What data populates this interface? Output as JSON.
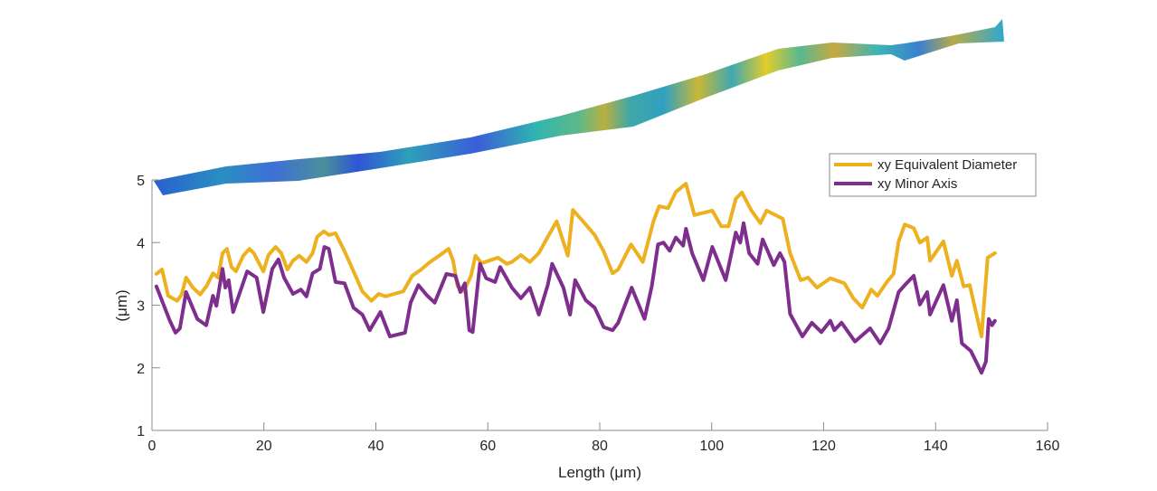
{
  "chart_data": {
    "type": "line",
    "title": "",
    "xlabel": "Length (μm)",
    "ylabel": "(μm)",
    "xlim": [
      0,
      160
    ],
    "ylim": [
      1,
      5
    ],
    "xticks": [
      0,
      20,
      40,
      60,
      80,
      100,
      120,
      140,
      160
    ],
    "yticks": [
      1,
      2,
      3,
      4,
      5
    ],
    "grid": false,
    "legend_position": "top-right",
    "series": [
      {
        "name": "xy Equivalent Diameter",
        "color": "#EDB120",
        "x": [
          0.8,
          1.8,
          2.9,
          3.7,
          4.5,
          5.3,
          6.1,
          7.3,
          8.6,
          9.8,
          10.9,
          11.8,
          12.6,
          13.4,
          14.2,
          15.0,
          16.3,
          17.4,
          18.2,
          19.0,
          19.9,
          20.8,
          22.1,
          23.1,
          24.2,
          25.2,
          26.3,
          27.6,
          28.7,
          29.5,
          30.7,
          31.6,
          32.8,
          34.4,
          36.0,
          37.6,
          39.2,
          40.5,
          41.7,
          43.3,
          44.9,
          46.5,
          48.1,
          49.7,
          51.3,
          53.0,
          53.8,
          54.6,
          55.7,
          57.0,
          57.8,
          58.9,
          60.2,
          61.8,
          63.4,
          64.3,
          65.9,
          67.5,
          69.1,
          70.7,
          72.3,
          74.3,
          75.2,
          77.5,
          79.1,
          80.7,
          82.3,
          83.3,
          85.6,
          87.7,
          89.6,
          90.6,
          92.2,
          93.6,
          95.4,
          96.9,
          100.1,
          101.7,
          103.0,
          104.3,
          105.4,
          107.1,
          108.7,
          109.8,
          112.7,
          114.0,
          115.9,
          117.2,
          118.8,
          121.2,
          123.7,
          125.3,
          126.9,
          128.5,
          129.6,
          131.3,
          132.5,
          133.4,
          134.5,
          136.1,
          137.2,
          138.5,
          139.0,
          141.4,
          142.9,
          143.8,
          145.0,
          146.1,
          148.2,
          149.3,
          150.6
        ],
        "y": [
          3.5,
          3.57,
          3.15,
          3.11,
          3.07,
          3.17,
          3.44,
          3.28,
          3.17,
          3.31,
          3.51,
          3.44,
          3.83,
          3.9,
          3.61,
          3.54,
          3.79,
          3.9,
          3.83,
          3.69,
          3.54,
          3.8,
          3.93,
          3.83,
          3.57,
          3.71,
          3.79,
          3.69,
          3.83,
          4.09,
          4.18,
          4.12,
          4.15,
          3.86,
          3.54,
          3.22,
          3.07,
          3.18,
          3.14,
          3.18,
          3.22,
          3.47,
          3.57,
          3.69,
          3.79,
          3.9,
          3.71,
          3.3,
          3.22,
          3.47,
          3.79,
          3.67,
          3.71,
          3.76,
          3.66,
          3.69,
          3.8,
          3.69,
          3.83,
          4.09,
          4.34,
          3.79,
          4.52,
          4.29,
          4.12,
          3.86,
          3.51,
          3.57,
          3.97,
          3.69,
          4.34,
          4.58,
          4.55,
          4.81,
          4.94,
          4.44,
          4.51,
          4.26,
          4.26,
          4.7,
          4.8,
          4.51,
          4.31,
          4.51,
          4.38,
          3.83,
          3.4,
          3.44,
          3.28,
          3.43,
          3.35,
          3.11,
          2.96,
          3.25,
          3.15,
          3.37,
          3.5,
          4.02,
          4.29,
          4.23,
          4.0,
          4.08,
          3.71,
          4.02,
          3.47,
          3.71,
          3.3,
          3.32,
          2.5,
          3.76,
          3.83
        ]
      },
      {
        "name": "xy Minor Axis",
        "color": "#7E2F8E",
        "x": [
          0.8,
          3.2,
          4.2,
          5.0,
          6.1,
          8.1,
          9.7,
          10.9,
          11.5,
          12.6,
          13.1,
          13.7,
          14.5,
          17.0,
          18.7,
          19.9,
          21.5,
          22.6,
          23.6,
          25.2,
          26.6,
          27.6,
          28.7,
          30.0,
          30.8,
          31.6,
          32.8,
          34.4,
          36.0,
          37.6,
          38.9,
          40.8,
          42.5,
          45.2,
          46.2,
          47.6,
          49.2,
          50.5,
          52.6,
          54.2,
          55.1,
          55.9,
          56.7,
          57.3,
          58.6,
          59.7,
          61.3,
          62.2,
          64.3,
          65.9,
          67.5,
          69.1,
          70.7,
          71.5,
          73.5,
          74.7,
          75.6,
          77.5,
          79.1,
          80.7,
          82.3,
          83.3,
          85.7,
          88.0,
          89.3,
          90.4,
          91.4,
          92.5,
          93.6,
          94.9,
          95.4,
          96.5,
          98.5,
          100.1,
          102.5,
          104.3,
          105.1,
          105.7,
          106.7,
          108.2,
          109.1,
          111.1,
          112.2,
          113.0,
          114.0,
          116.2,
          117.9,
          119.6,
          121.2,
          121.9,
          123.2,
          125.6,
          128.3,
          130.1,
          131.6,
          133.4,
          134.5,
          136.1,
          137.2,
          138.5,
          139.0,
          141.4,
          142.9,
          143.8,
          144.7,
          146.3,
          147.4,
          148.2,
          149.0,
          149.5,
          150.1,
          150.6
        ],
        "y": [
          3.3,
          2.75,
          2.56,
          2.63,
          3.21,
          2.78,
          2.68,
          3.15,
          2.99,
          3.58,
          3.28,
          3.4,
          2.89,
          3.54,
          3.44,
          2.89,
          3.58,
          3.73,
          3.44,
          3.18,
          3.25,
          3.14,
          3.51,
          3.58,
          3.93,
          3.9,
          3.37,
          3.35,
          2.96,
          2.85,
          2.6,
          2.89,
          2.5,
          2.56,
          3.04,
          3.32,
          3.15,
          3.04,
          3.5,
          3.47,
          3.21,
          3.35,
          2.6,
          2.57,
          3.66,
          3.43,
          3.37,
          3.61,
          3.28,
          3.11,
          3.28,
          2.85,
          3.32,
          3.66,
          3.28,
          2.85,
          3.4,
          3.08,
          2.96,
          2.65,
          2.6,
          2.72,
          3.28,
          2.78,
          3.3,
          3.97,
          4.0,
          3.87,
          4.08,
          3.95,
          4.22,
          3.83,
          3.4,
          3.93,
          3.4,
          4.16,
          4.0,
          4.31,
          3.83,
          3.66,
          4.05,
          3.64,
          3.83,
          3.69,
          2.86,
          2.5,
          2.72,
          2.57,
          2.75,
          2.6,
          2.72,
          2.42,
          2.63,
          2.39,
          2.63,
          3.21,
          3.32,
          3.47,
          3.01,
          3.21,
          2.85,
          3.32,
          2.75,
          3.08,
          2.39,
          2.27,
          2.07,
          1.92,
          2.1,
          2.78,
          2.68,
          2.75
        ]
      }
    ]
  },
  "colors": {
    "axis": "#8c8c8c",
    "text": "#262626"
  }
}
